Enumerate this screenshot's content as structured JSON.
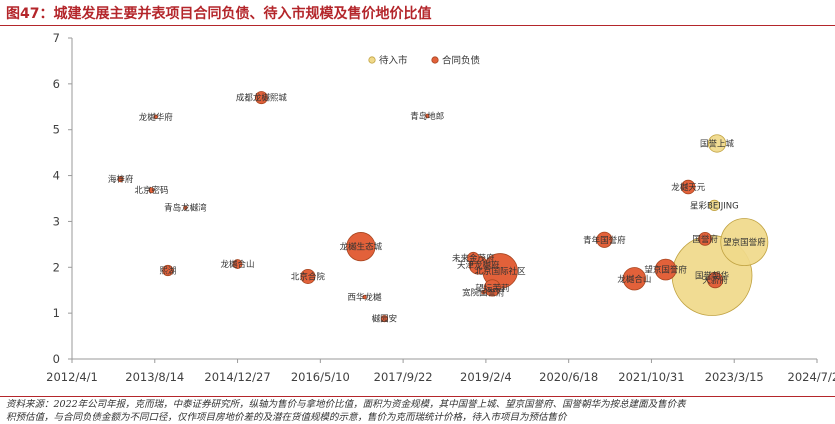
{
  "title": "图47：城建发展主要并表项目合同负债、待入市规模及售价地价比值",
  "source_lines": [
    "资料来源：2022年公司年报，克而瑞，中泰证券研究所，纵轴为售价与拿地价比值，面积为资金规模，其中国誉上城、望京国誉府、国誉朝华为按总建面及售价表",
    "积预估值，与合同负债金额为不同口径，仅作项目房地价差的及潜在货值规模的示意，售价为克而瑞统计价格，待入市项目为预估售价"
  ],
  "colors": {
    "title": "#b4262b",
    "contract": "#e2613a",
    "contract_stroke": "#a8451f",
    "pending": "#f0d98a",
    "pending_stroke": "#c0a241",
    "axis": "#9a9a9a"
  },
  "chart_data": {
    "type": "scatter",
    "title": "",
    "xlabel": "",
    "ylabel": "",
    "x_ticks": [
      "2012/4/1",
      "2013/8/14",
      "2014/12/27",
      "2016/5/10",
      "2017/9/22",
      "2019/2/4",
      "2020/6/18",
      "2021/10/31",
      "2023/3/15",
      "2024/7/27"
    ],
    "xlim": [
      "2012/4/1",
      "2024/7/27"
    ],
    "ylim": [
      0,
      7
    ],
    "y_ticks": [
      0,
      1,
      2,
      3,
      4,
      5,
      6,
      7
    ],
    "gridlines": false,
    "legend_position": "top",
    "legend": [
      "待入市",
      "合同负债"
    ],
    "series": [
      {
        "name": "合同负债",
        "points": [
          {
            "label": "海梓府",
            "date": "2013/1/20",
            "y": 3.92,
            "size": 0.4
          },
          {
            "label": "北京密码",
            "date": "2013/7/25",
            "y": 3.68,
            "size": 0.4
          },
          {
            "label": "龙樾华府",
            "date": "2013/8/20",
            "y": 5.28,
            "size": 0.1
          },
          {
            "label": "成都龙樾熙城",
            "date": "2015/5/20",
            "y": 5.7,
            "size": 2.2
          },
          {
            "label": "青岛龙樾湾",
            "date": "2014/2/15",
            "y": 3.3,
            "size": 0.1
          },
          {
            "label": "龙樾合山",
            "date": "2014/12/27",
            "y": 2.07,
            "size": 1.2
          },
          {
            "label": "熙湖",
            "date": "2013/11/1",
            "y": 1.93,
            "size": 1.6
          },
          {
            "label": "北京合院",
            "date": "2016/2/25",
            "y": 1.8,
            "size": 3.0
          },
          {
            "label": "龙樾生态城",
            "date": "2017/1/10",
            "y": 2.45,
            "size": 12.0
          },
          {
            "label": "西华龙樾",
            "date": "2017/2/1",
            "y": 1.35,
            "size": 0.1
          },
          {
            "label": "樾园安",
            "date": "2017/6/1",
            "y": 0.88,
            "size": 0.6
          },
          {
            "label": "青岛地郎",
            "date": "2018/2/15",
            "y": 5.3,
            "size": 0.1
          },
          {
            "label": "未来金茂府",
            "date": "2018/11/20",
            "y": 2.2,
            "size": 2.0
          },
          {
            "label": "天津龙樾府",
            "date": "2018/12/20",
            "y": 2.05,
            "size": 5.0
          },
          {
            "label": "宽院国誉府",
            "date": "2019/1/20",
            "y": 1.45,
            "size": 0.2
          },
          {
            "label": "北京国际社区",
            "date": "2019/5/1",
            "y": 1.92,
            "size": 18.0
          },
          {
            "label": "望坛茉莉",
            "date": "2019/3/15",
            "y": 1.55,
            "size": 4.0
          },
          {
            "label": "青年国誉府",
            "date": "2021/1/20",
            "y": 2.6,
            "size": 3.5
          },
          {
            "label": "龙樾合山",
            "date": "2021/7/20",
            "y": 1.75,
            "size": 7.5
          },
          {
            "label": "望京国誉府",
            "date": "2022/1/25",
            "y": 1.95,
            "size": 6.5
          },
          {
            "label": "龙樾天元",
            "date": "2022/6/10",
            "y": 3.75,
            "size": 2.8
          },
          {
            "label": "国誉府",
            "date": "2022/9/20",
            "y": 2.62,
            "size": 2.5
          },
          {
            "label": "天骄府",
            "date": "2022/11/20",
            "y": 1.72,
            "size": 3.5
          }
        ]
      },
      {
        "name": "待入市",
        "points": [
          {
            "label": "国誉上城",
            "date": "2022/12/1",
            "y": 4.7,
            "size": 4.5
          },
          {
            "label": "星彩BEIJING",
            "date": "2022/11/15",
            "y": 3.35,
            "size": 1.6
          },
          {
            "label": "望京国誉府",
            "date": "2023/5/15",
            "y": 2.55,
            "size": 33.0
          },
          {
            "label": "国誉朝华",
            "date": "2022/11/1",
            "y": 1.82,
            "size": 95.0
          }
        ]
      }
    ]
  }
}
